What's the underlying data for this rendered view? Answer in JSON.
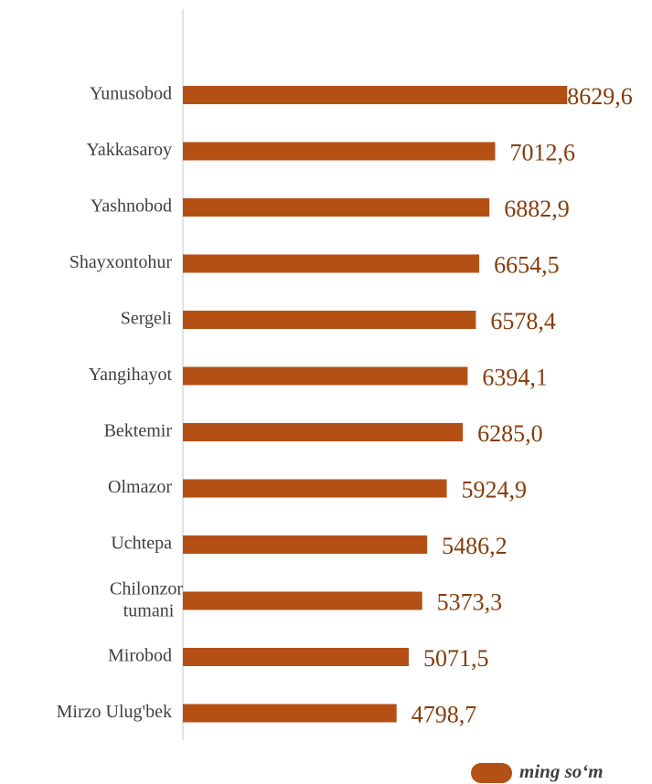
{
  "chart_data": {
    "type": "barh",
    "categories": [
      "Yunusobod",
      "Yakkasaroy",
      "Yashnobod",
      "Shayxontohur",
      "Sergeli",
      "Yangihayot",
      "Bektemir",
      "Olmazor",
      "Uchtepa",
      "Chilonzor tumani",
      "Mirobod",
      "Mirzo Ulug'bek"
    ],
    "series": [
      {
        "name": "ming so‘m",
        "color": "#B45014",
        "values": [
          8629.6,
          7012.6,
          6882.9,
          6654.5,
          6578.4,
          6394.1,
          6285.0,
          5924.9,
          5486.2,
          5373.3,
          5071.5,
          4798.7
        ],
        "value_labels": [
          "8629,6",
          "7012,6",
          "6882,9",
          "6654,5",
          "6578,4",
          "6394,1",
          "6285,0",
          "5924,9",
          "5486,2",
          "5373,3",
          "5071,5",
          "4798,7"
        ]
      }
    ],
    "xlim": [
      0,
      10000
    ],
    "legend": "bottom-right"
  }
}
